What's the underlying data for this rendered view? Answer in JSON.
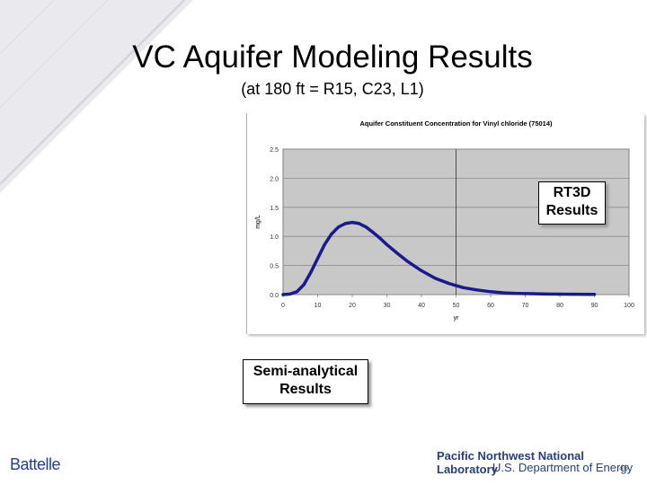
{
  "slide": {
    "title": "VC Aquifer Modeling Results",
    "subtitle": "(at 180 ft = R15, C23, L1)",
    "page_number": "46"
  },
  "callouts": {
    "rt3d": [
      "RT3D",
      "Results"
    ],
    "semi": [
      "Semi-analytical",
      "Results"
    ]
  },
  "footer": {
    "left_logo": "Battelle",
    "right_line1": "Pacific Northwest National Laboratory",
    "right_line2": "U.S. Department of Energy"
  },
  "colors": {
    "curve": "#1a1a8c",
    "plot_bg": "#c8c8c8",
    "footer_text": "#27407a"
  },
  "chart_data": {
    "type": "line",
    "title": "Aquifer Constituent Concentration for Vinyl chloride (75014)",
    "xlabel": "yr",
    "ylabel": "mg/L",
    "xlim": [
      0,
      100
    ],
    "ylim": [
      0,
      2.5
    ],
    "xticks": [
      "0",
      "10",
      "20",
      "30",
      "40",
      "50",
      "60",
      "70",
      "80",
      "90",
      "100"
    ],
    "yticks": [
      "0.0",
      "0.5",
      "1.0",
      "1.5",
      "2.0",
      "2.5"
    ],
    "grid": "horizontal",
    "reference_line_x": 50,
    "series": [
      {
        "x": [
          0,
          2,
          4,
          6,
          8,
          10,
          12,
          14,
          16,
          18,
          20,
          22,
          24,
          26,
          28,
          30,
          33,
          36,
          40,
          44,
          48,
          52,
          56,
          60,
          64,
          68,
          72,
          76,
          80,
          84,
          88,
          90
        ],
        "y": [
          0.0,
          0.01,
          0.05,
          0.17,
          0.38,
          0.62,
          0.86,
          1.04,
          1.16,
          1.22,
          1.24,
          1.22,
          1.16,
          1.07,
          0.97,
          0.86,
          0.71,
          0.57,
          0.41,
          0.28,
          0.19,
          0.12,
          0.08,
          0.05,
          0.03,
          0.02,
          0.015,
          0.01,
          0.008,
          0.006,
          0.005,
          0.005
        ]
      }
    ]
  }
}
